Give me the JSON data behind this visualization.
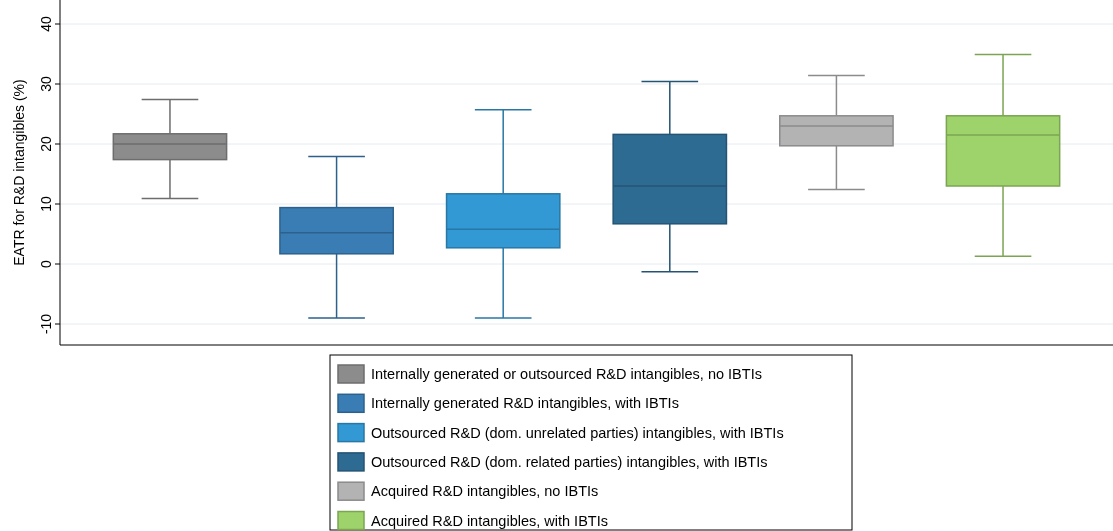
{
  "chart_data": {
    "type": "box",
    "ylabel": "EATR for R&D intangibles (%)",
    "categories": [
      null,
      null,
      null,
      null,
      null,
      null
    ],
    "ylim": [
      -13.5,
      44
    ],
    "yticks": [
      -10,
      0,
      10,
      20,
      30,
      40
    ],
    "grid": "y",
    "legend": "bottom",
    "tick_labels": "y",
    "series": [
      {
        "name": "Internally generated or outsourced R&D intangibles, no IBTIs",
        "color": "#8c8c8c",
        "boxes": [
          {
            "low": 10.9,
            "q1": 17.4,
            "median": 20,
            "q3": 21.7,
            "high": 27.4
          },
          null,
          null,
          null,
          null,
          null
        ]
      },
      {
        "name": "Internally generated R&D intangibles, with IBTIs",
        "color": "#3a7db4",
        "boxes": [
          null,
          {
            "low": -9,
            "q1": 1.7,
            "median": 5.2,
            "q3": 9.4,
            "high": 17.9
          },
          null,
          null,
          null,
          null
        ]
      },
      {
        "name": "Outsourced R&D (dom. unrelated parties) intangibles, with IBTIs",
        "color": "#3399d4",
        "boxes": [
          null,
          null,
          {
            "low": -9,
            "q1": 2.7,
            "median": 5.8,
            "q3": 11.7,
            "high": 25.7
          },
          null,
          null,
          null
        ]
      },
      {
        "name": "Outsourced R&D (dom. related parties) intangibles, with IBTIs",
        "color": "#2e6b93",
        "boxes": [
          null,
          null,
          null,
          {
            "low": -1.3,
            "q1": 6.7,
            "median": 13,
            "q3": 21.6,
            "high": 30.4
          },
          null,
          null
        ]
      },
      {
        "name": "Acquired R&D intangibles, no IBTIs",
        "color": "#b3b3b3",
        "boxes": [
          null,
          null,
          null,
          null,
          {
            "low": 12.4,
            "q1": 19.7,
            "median": 23,
            "q3": 24.7,
            "high": 31.4
          },
          null
        ]
      },
      {
        "name": "Acquired R&D intangibles, with IBTIs",
        "color": "#9ed26a",
        "boxes": [
          null,
          null,
          null,
          null,
          null,
          {
            "low": 1.3,
            "q1": 13,
            "median": 21.5,
            "q3": 24.7,
            "high": 34.9
          }
        ]
      }
    ]
  }
}
